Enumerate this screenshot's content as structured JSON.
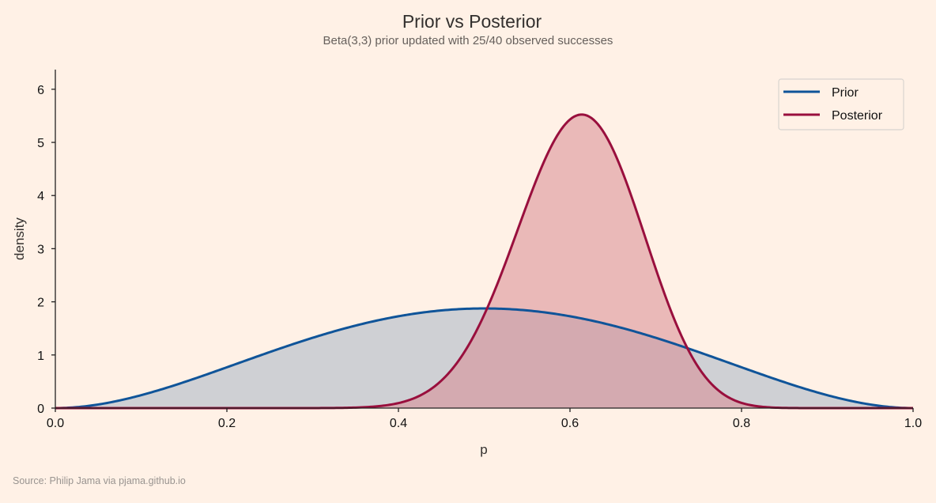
{
  "chart_data": {
    "type": "area",
    "title": "Prior vs Posterior",
    "subtitle": "Beta(3,3) prior updated with 25/40 observed successes",
    "xlabel": "p",
    "ylabel": "density",
    "xlim": [
      0,
      1
    ],
    "ylim": [
      0,
      6.37
    ],
    "xticks": [
      0.0,
      0.2,
      0.4,
      0.6,
      0.8,
      1.0
    ],
    "xtick_labels": [
      "0.0",
      "0.2",
      "0.4",
      "0.6",
      "0.8",
      "1.0"
    ],
    "yticks": [
      0,
      1,
      2,
      3,
      4,
      5,
      6
    ],
    "ytick_labels": [
      "0",
      "1",
      "2",
      "3",
      "4",
      "5",
      "6"
    ],
    "grid": false,
    "legend_position": "top-right",
    "series": [
      {
        "name": "Prior",
        "distribution": "Beta",
        "alpha": 3,
        "beta": 3,
        "color": "#0f5499",
        "fill": "#cfd0d4"
      },
      {
        "name": "Posterior",
        "distribution": "Beta",
        "alpha": 28,
        "beta": 18,
        "color": "#990f3d",
        "fill": "#d98a92"
      }
    ],
    "source": "Source: Philip Jama via pjama.github.io"
  }
}
